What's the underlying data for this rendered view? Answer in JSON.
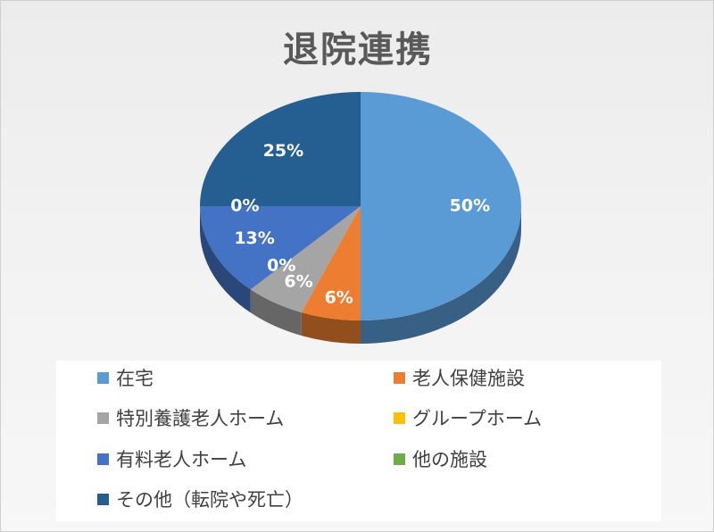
{
  "title": "退院連携",
  "chart_data": {
    "type": "pie",
    "title": "退院連携",
    "categories": [
      "在宅",
      "老人保健施設",
      "特別養護老人ホーム",
      "グループホーム",
      "有料老人ホーム",
      "他の施設",
      "その他（転院や死亡）"
    ],
    "values": [
      50,
      6,
      6,
      0,
      13,
      0,
      25
    ],
    "labels": [
      "50%",
      "6%",
      "6%",
      "0%",
      "13%",
      "0%",
      "25%"
    ],
    "colors": [
      "#5b9bd5",
      "#ed7d31",
      "#a5a5a5",
      "#ffc000",
      "#4472c4",
      "#70ad47",
      "#255e91"
    ],
    "legend_position": "bottom",
    "label_color": "#ffffff"
  }
}
